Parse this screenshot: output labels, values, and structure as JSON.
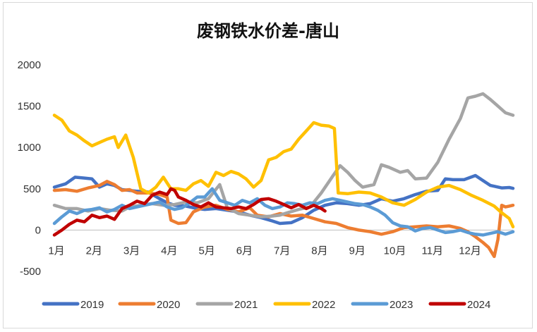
{
  "chart_data": {
    "type": "line",
    "title": "废钢铁水价差-唐山",
    "xlabel": "",
    "ylabel": "",
    "ylim": [
      -500,
      2000
    ],
    "yticks": [
      2000,
      1500,
      1000,
      500,
      0,
      -500
    ],
    "ytick_labels": [
      "2000",
      "1500",
      "1000",
      "500",
      "0",
      "-500"
    ],
    "x_range": [
      1,
      13
    ],
    "x_ticks": [
      1,
      2,
      3,
      4,
      5,
      6,
      7,
      8,
      9,
      10,
      11,
      12
    ],
    "x_tick_labels": [
      "1月",
      "2月",
      "3月",
      "4月",
      "5月",
      "6月",
      "7月",
      "8月",
      "9月",
      "10月",
      "11月",
      "12月"
    ],
    "grid": false,
    "legend_position": "bottom",
    "series": [
      {
        "name": "2019",
        "color": "#4472C4",
        "points": [
          [
            1.0,
            520
          ],
          [
            1.3,
            560
          ],
          [
            1.55,
            640
          ],
          [
            1.8,
            630
          ],
          [
            2.0,
            620
          ],
          [
            2.2,
            520
          ],
          [
            2.4,
            560
          ],
          [
            2.6,
            540
          ],
          [
            2.8,
            490
          ],
          [
            3.0,
            480
          ],
          [
            3.2,
            470
          ],
          [
            3.5,
            460
          ],
          [
            3.8,
            380
          ],
          [
            4.0,
            330
          ],
          [
            4.2,
            300
          ],
          [
            4.5,
            290
          ],
          [
            4.8,
            260
          ],
          [
            5.0,
            250
          ],
          [
            5.3,
            260
          ],
          [
            5.6,
            240
          ],
          [
            5.9,
            220
          ],
          [
            6.2,
            180
          ],
          [
            6.5,
            150
          ],
          [
            6.8,
            110
          ],
          [
            7.0,
            80
          ],
          [
            7.3,
            90
          ],
          [
            7.6,
            150
          ],
          [
            7.9,
            240
          ],
          [
            8.2,
            300
          ],
          [
            8.5,
            330
          ],
          [
            8.8,
            320
          ],
          [
            9.1,
            300
          ],
          [
            9.4,
            320
          ],
          [
            9.7,
            380
          ],
          [
            10.0,
            350
          ],
          [
            10.3,
            380
          ],
          [
            10.6,
            430
          ],
          [
            10.9,
            470
          ],
          [
            11.2,
            480
          ],
          [
            11.4,
            620
          ],
          [
            11.6,
            610
          ],
          [
            11.9,
            610
          ],
          [
            12.2,
            660
          ],
          [
            12.4,
            600
          ],
          [
            12.6,
            540
          ],
          [
            12.9,
            510
          ],
          [
            13.1,
            515
          ],
          [
            13.2,
            505
          ]
        ]
      },
      {
        "name": "2020",
        "color": "#ED7D31",
        "points": [
          [
            1.0,
            480
          ],
          [
            1.3,
            490
          ],
          [
            1.6,
            470
          ],
          [
            1.9,
            510
          ],
          [
            2.2,
            540
          ],
          [
            2.4,
            590
          ],
          [
            2.6,
            550
          ],
          [
            2.8,
            480
          ],
          [
            3.0,
            490
          ],
          [
            3.2,
            450
          ],
          [
            3.5,
            450
          ],
          [
            3.8,
            430
          ],
          [
            4.0,
            400
          ],
          [
            4.1,
            120
          ],
          [
            4.3,
            80
          ],
          [
            4.5,
            90
          ],
          [
            4.7,
            220
          ],
          [
            5.0,
            280
          ],
          [
            5.3,
            300
          ],
          [
            5.6,
            250
          ],
          [
            5.9,
            220
          ],
          [
            6.2,
            270
          ],
          [
            6.4,
            180
          ],
          [
            6.7,
            160
          ],
          [
            7.0,
            200
          ],
          [
            7.3,
            170
          ],
          [
            7.6,
            180
          ],
          [
            7.9,
            140
          ],
          [
            8.2,
            100
          ],
          [
            8.5,
            80
          ],
          [
            8.8,
            30
          ],
          [
            9.1,
            0
          ],
          [
            9.4,
            -20
          ],
          [
            9.7,
            -50
          ],
          [
            10.0,
            -20
          ],
          [
            10.3,
            30
          ],
          [
            10.6,
            40
          ],
          [
            10.9,
            50
          ],
          [
            11.2,
            40
          ],
          [
            11.5,
            50
          ],
          [
            11.8,
            20
          ],
          [
            12.0,
            -20
          ],
          [
            12.2,
            -80
          ],
          [
            12.4,
            -150
          ],
          [
            12.55,
            -210
          ],
          [
            12.7,
            -320
          ],
          [
            12.8,
            -110
          ],
          [
            12.9,
            300
          ],
          [
            13.0,
            280
          ],
          [
            13.1,
            290
          ],
          [
            13.2,
            300
          ]
        ]
      },
      {
        "name": "2021",
        "color": "#A5A5A5",
        "points": [
          [
            1.0,
            300
          ],
          [
            1.3,
            260
          ],
          [
            1.6,
            260
          ],
          [
            1.9,
            230
          ],
          [
            2.2,
            260
          ],
          [
            2.5,
            240
          ],
          [
            2.8,
            230
          ],
          [
            3.0,
            280
          ],
          [
            3.3,
            300
          ],
          [
            3.6,
            320
          ],
          [
            3.9,
            300
          ],
          [
            4.2,
            310
          ],
          [
            4.5,
            340
          ],
          [
            4.8,
            330
          ],
          [
            5.1,
            380
          ],
          [
            5.4,
            550
          ],
          [
            5.6,
            270
          ],
          [
            5.9,
            200
          ],
          [
            6.2,
            180
          ],
          [
            6.5,
            160
          ],
          [
            6.8,
            170
          ],
          [
            7.0,
            180
          ],
          [
            7.2,
            210
          ],
          [
            7.5,
            250
          ],
          [
            7.8,
            280
          ],
          [
            8.1,
            450
          ],
          [
            8.4,
            650
          ],
          [
            8.6,
            780
          ],
          [
            8.8,
            700
          ],
          [
            9.0,
            600
          ],
          [
            9.2,
            520
          ],
          [
            9.5,
            550
          ],
          [
            9.7,
            790
          ],
          [
            9.9,
            760
          ],
          [
            10.2,
            700
          ],
          [
            10.4,
            720
          ],
          [
            10.6,
            620
          ],
          [
            10.9,
            630
          ],
          [
            11.2,
            820
          ],
          [
            11.5,
            1100
          ],
          [
            11.8,
            1350
          ],
          [
            12.0,
            1600
          ],
          [
            12.2,
            1620
          ],
          [
            12.4,
            1650
          ],
          [
            12.6,
            1580
          ],
          [
            12.8,
            1500
          ],
          [
            13.0,
            1420
          ],
          [
            13.2,
            1390
          ]
        ]
      },
      {
        "name": "2022",
        "color": "#FFC000",
        "points": [
          [
            1.0,
            1390
          ],
          [
            1.2,
            1330
          ],
          [
            1.4,
            1200
          ],
          [
            1.6,
            1150
          ],
          [
            1.8,
            1080
          ],
          [
            2.0,
            1020
          ],
          [
            2.2,
            1060
          ],
          [
            2.4,
            1100
          ],
          [
            2.6,
            1130
          ],
          [
            2.7,
            1000
          ],
          [
            2.9,
            1150
          ],
          [
            3.1,
            880
          ],
          [
            3.3,
            500
          ],
          [
            3.5,
            450
          ],
          [
            3.7,
            520
          ],
          [
            3.9,
            640
          ],
          [
            4.1,
            500
          ],
          [
            4.3,
            500
          ],
          [
            4.5,
            480
          ],
          [
            4.7,
            560
          ],
          [
            4.9,
            600
          ],
          [
            5.1,
            530
          ],
          [
            5.3,
            700
          ],
          [
            5.5,
            660
          ],
          [
            5.7,
            710
          ],
          [
            5.9,
            680
          ],
          [
            6.1,
            620
          ],
          [
            6.3,
            520
          ],
          [
            6.5,
            600
          ],
          [
            6.7,
            850
          ],
          [
            6.9,
            880
          ],
          [
            7.1,
            950
          ],
          [
            7.3,
            980
          ],
          [
            7.5,
            1100
          ],
          [
            7.7,
            1200
          ],
          [
            7.9,
            1300
          ],
          [
            8.1,
            1270
          ],
          [
            8.3,
            1260
          ],
          [
            8.45,
            1230
          ],
          [
            8.55,
            450
          ],
          [
            8.8,
            440
          ],
          [
            9.1,
            460
          ],
          [
            9.4,
            450
          ],
          [
            9.7,
            400
          ],
          [
            10.0,
            330
          ],
          [
            10.3,
            300
          ],
          [
            10.6,
            370
          ],
          [
            10.9,
            460
          ],
          [
            11.2,
            520
          ],
          [
            11.5,
            540
          ],
          [
            11.8,
            490
          ],
          [
            12.1,
            420
          ],
          [
            12.4,
            360
          ],
          [
            12.7,
            290
          ],
          [
            12.9,
            210
          ],
          [
            13.1,
            140
          ],
          [
            13.2,
            40
          ]
        ]
      },
      {
        "name": "2023",
        "color": "#5B9BD5",
        "points": [
          [
            1.0,
            80
          ],
          [
            1.2,
            160
          ],
          [
            1.4,
            230
          ],
          [
            1.6,
            200
          ],
          [
            1.8,
            240
          ],
          [
            2.0,
            250
          ],
          [
            2.2,
            270
          ],
          [
            2.4,
            220
          ],
          [
            2.6,
            250
          ],
          [
            2.8,
            300
          ],
          [
            3.0,
            260
          ],
          [
            3.2,
            280
          ],
          [
            3.4,
            300
          ],
          [
            3.6,
            320
          ],
          [
            3.8,
            340
          ],
          [
            4.0,
            280
          ],
          [
            4.2,
            250
          ],
          [
            4.4,
            270
          ],
          [
            4.6,
            330
          ],
          [
            4.8,
            400
          ],
          [
            5.0,
            400
          ],
          [
            5.2,
            500
          ],
          [
            5.4,
            360
          ],
          [
            5.6,
            330
          ],
          [
            5.8,
            300
          ],
          [
            6.0,
            360
          ],
          [
            6.2,
            330
          ],
          [
            6.4,
            380
          ],
          [
            6.6,
            300
          ],
          [
            6.8,
            260
          ],
          [
            7.0,
            280
          ],
          [
            7.2,
            330
          ],
          [
            7.4,
            320
          ],
          [
            7.6,
            300
          ],
          [
            7.8,
            330
          ],
          [
            8.0,
            320
          ],
          [
            8.2,
            360
          ],
          [
            8.4,
            380
          ],
          [
            8.6,
            360
          ],
          [
            8.8,
            340
          ],
          [
            9.0,
            320
          ],
          [
            9.2,
            310
          ],
          [
            9.4,
            280
          ],
          [
            9.6,
            240
          ],
          [
            9.8,
            180
          ],
          [
            10.0,
            90
          ],
          [
            10.2,
            50
          ],
          [
            10.4,
            40
          ],
          [
            10.6,
            -10
          ],
          [
            10.8,
            20
          ],
          [
            11.0,
            30
          ],
          [
            11.2,
            0
          ],
          [
            11.4,
            -30
          ],
          [
            11.6,
            -20
          ],
          [
            11.8,
            0
          ],
          [
            12.0,
            -30
          ],
          [
            12.2,
            -50
          ],
          [
            12.4,
            -60
          ],
          [
            12.6,
            -40
          ],
          [
            12.8,
            -20
          ],
          [
            13.0,
            -50
          ],
          [
            13.2,
            -20
          ]
        ]
      },
      {
        "name": "2024",
        "color": "#C00000",
        "points": [
          [
            1.0,
            -60
          ],
          [
            1.2,
            0
          ],
          [
            1.4,
            70
          ],
          [
            1.6,
            120
          ],
          [
            1.8,
            100
          ],
          [
            2.0,
            180
          ],
          [
            2.2,
            150
          ],
          [
            2.4,
            170
          ],
          [
            2.6,
            130
          ],
          [
            2.8,
            260
          ],
          [
            3.0,
            300
          ],
          [
            3.2,
            350
          ],
          [
            3.4,
            320
          ],
          [
            3.6,
            420
          ],
          [
            3.8,
            460
          ],
          [
            4.0,
            430
          ],
          [
            4.1,
            500
          ],
          [
            4.2,
            480
          ],
          [
            4.3,
            400
          ],
          [
            4.5,
            360
          ],
          [
            4.7,
            310
          ],
          [
            4.9,
            280
          ],
          [
            5.1,
            330
          ],
          [
            5.3,
            280
          ],
          [
            5.5,
            270
          ],
          [
            5.7,
            260
          ],
          [
            5.9,
            280
          ],
          [
            6.1,
            260
          ],
          [
            6.3,
            310
          ],
          [
            6.5,
            370
          ],
          [
            6.7,
            380
          ],
          [
            6.9,
            350
          ],
          [
            7.1,
            310
          ],
          [
            7.3,
            270
          ],
          [
            7.5,
            310
          ],
          [
            7.7,
            260
          ],
          [
            7.9,
            300
          ],
          [
            8.1,
            260
          ],
          [
            8.2,
            230
          ]
        ]
      }
    ]
  }
}
